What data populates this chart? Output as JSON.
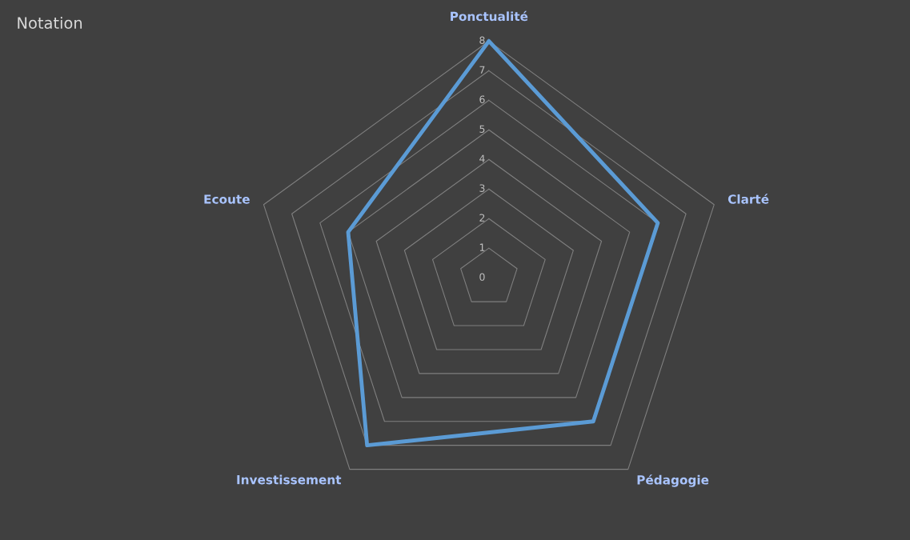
{
  "chart_data": {
    "type": "radar",
    "title": "Notation",
    "categories": [
      "Ponctualité",
      "Clarté",
      "Pédagogie",
      "Investissement",
      "Ecoute"
    ],
    "series": [
      {
        "color": "#5b9bd5",
        "values": [
          8,
          6,
          6,
          7,
          5
        ]
      }
    ],
    "ylim": [
      0,
      8
    ],
    "yticks": [
      0,
      1,
      2,
      3,
      4,
      5,
      6,
      7,
      8
    ],
    "grid": true,
    "marker": "none",
    "line_style": "solid"
  }
}
